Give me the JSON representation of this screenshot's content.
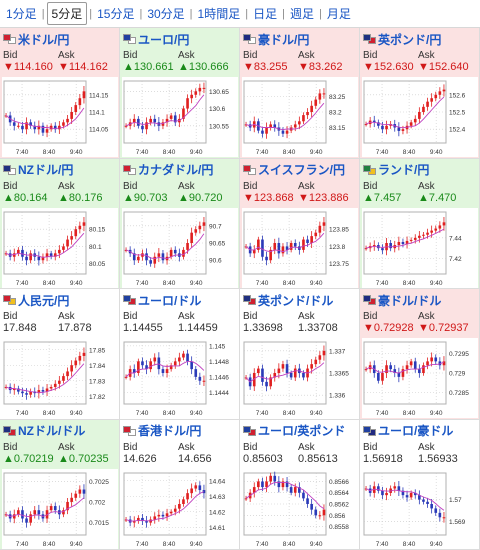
{
  "tabs": [
    "1分足",
    "5分足",
    "15分足",
    "30分足",
    "1時間足",
    "日足",
    "週足",
    "月足"
  ],
  "active_tab": 1,
  "bid_label": "Bid",
  "ask_label": "Ask",
  "up_marker": "▲",
  "down_marker": "▼",
  "colors": {
    "up_bg": "#e1f6dd",
    "down_bg": "#fbe2e2",
    "up_text": "#1a8a1a",
    "down_text": "#d01818",
    "link": "#1a56c4",
    "candle_up": "#e02020",
    "candle_down": "#2a3ab8",
    "ma": "#c040c0"
  },
  "time_labels": [
    "7:40",
    "8:40",
    "9:40"
  ],
  "pairs": [
    {
      "name": "米ドル/円",
      "dir": "down",
      "bid": "114.160",
      "ask": "114.162",
      "flags": [
        "#d02030",
        "#ffffff"
      ],
      "y_ticks": [
        "114.15",
        "114.1",
        "114.05"
      ],
      "y_ticks_n": [
        114.15,
        114.1,
        114.05
      ],
      "ylim": [
        114.01,
        114.19
      ],
      "path": [
        114.09,
        114.07,
        114.06,
        114.06,
        114.05,
        114.07,
        114.06,
        114.05,
        114.06,
        114.04,
        114.05,
        114.06,
        114.05,
        114.06,
        114.07,
        114.08,
        114.1,
        114.12,
        114.14,
        114.16
      ]
    },
    {
      "name": "ユーロ/円",
      "dir": "up",
      "bid": "130.661",
      "ask": "130.666",
      "flags": [
        "#2040a0",
        "#ffffff"
      ],
      "y_ticks": [
        "130.65",
        "130.6",
        "130.55"
      ],
      "y_ticks_n": [
        130.65,
        130.6,
        130.55
      ],
      "ylim": [
        130.5,
        130.68
      ],
      "path": [
        130.55,
        130.56,
        130.57,
        130.55,
        130.54,
        130.56,
        130.57,
        130.56,
        130.55,
        130.56,
        130.57,
        130.58,
        130.56,
        130.57,
        130.6,
        130.63,
        130.64,
        130.65,
        130.66,
        130.66
      ]
    },
    {
      "name": "豪ドル/円",
      "dir": "down",
      "bid": "83.255",
      "ask": "83.262",
      "flags": [
        "#202a80",
        "#ffffff"
      ],
      "y_ticks": [
        "83.25",
        "83.2",
        "83.15"
      ],
      "y_ticks_n": [
        83.25,
        83.2,
        83.15
      ],
      "ylim": [
        83.1,
        83.3
      ],
      "path": [
        83.16,
        83.15,
        83.17,
        83.14,
        83.13,
        83.15,
        83.16,
        83.15,
        83.14,
        83.13,
        83.14,
        83.15,
        83.16,
        83.17,
        83.19,
        83.2,
        83.22,
        83.24,
        83.26,
        83.26
      ]
    },
    {
      "name": "英ポンド/円",
      "dir": "down",
      "bid": "152.630",
      "ask": "152.640",
      "flags": [
        "#203080",
        "#d02030"
      ],
      "y_ticks": [
        "152.6",
        "152.5",
        "152.4"
      ],
      "y_ticks_n": [
        152.6,
        152.5,
        152.4
      ],
      "ylim": [
        152.32,
        152.68
      ],
      "path": [
        152.43,
        152.45,
        152.44,
        152.42,
        152.4,
        152.42,
        152.43,
        152.41,
        152.39,
        152.4,
        152.42,
        152.44,
        152.46,
        152.5,
        152.53,
        152.56,
        152.58,
        152.6,
        152.62,
        152.63
      ]
    },
    {
      "name": "NZドル/円",
      "dir": "up",
      "bid": "80.164",
      "ask": "80.176",
      "flags": [
        "#203080",
        "#ffffff"
      ],
      "y_ticks": [
        "80.15",
        "80.1",
        "80.05"
      ],
      "y_ticks_n": [
        80.15,
        80.1,
        80.05
      ],
      "ylim": [
        80.02,
        80.2
      ],
      "path": [
        80.08,
        80.07,
        80.08,
        80.09,
        80.07,
        80.06,
        80.08,
        80.07,
        80.06,
        80.07,
        80.08,
        80.07,
        80.08,
        80.09,
        80.1,
        80.12,
        80.13,
        80.15,
        80.16,
        80.17
      ]
    },
    {
      "name": "カナダドル/円",
      "dir": "up",
      "bid": "90.703",
      "ask": "90.720",
      "flags": [
        "#d02030",
        "#ffffff"
      ],
      "y_ticks": [
        "90.7",
        "90.65",
        "90.6"
      ],
      "y_ticks_n": [
        90.7,
        90.65,
        90.6
      ],
      "ylim": [
        90.56,
        90.74
      ],
      "path": [
        90.63,
        90.62,
        90.6,
        90.61,
        90.62,
        90.6,
        90.59,
        90.61,
        90.62,
        90.6,
        90.61,
        90.63,
        90.62,
        90.61,
        90.63,
        90.65,
        90.68,
        90.69,
        90.7,
        90.71
      ]
    },
    {
      "name": "スイスフラン/円",
      "dir": "down",
      "bid": "123.868",
      "ask": "123.886",
      "flags": [
        "#d02030",
        "#ffffff"
      ],
      "y_ticks": [
        "123.85",
        "123.8",
        "123.75"
      ],
      "y_ticks_n": [
        123.85,
        123.8,
        123.75
      ],
      "ylim": [
        123.72,
        123.9
      ],
      "path": [
        123.8,
        123.78,
        123.79,
        123.82,
        123.77,
        123.76,
        123.79,
        123.81,
        123.78,
        123.8,
        123.79,
        123.81,
        123.8,
        123.79,
        123.82,
        123.81,
        123.83,
        123.84,
        123.86,
        123.87
      ]
    },
    {
      "name": "ランド/円",
      "dir": "up",
      "bid": "7.457",
      "ask": "7.470",
      "flags": [
        "#208040",
        "#f0c020"
      ],
      "y_ticks": [
        "7.44",
        "7.42"
      ],
      "y_ticks_n": [
        7.44,
        7.42
      ],
      "ylim": [
        7.405,
        7.465
      ],
      "path": [
        7.43,
        7.432,
        7.433,
        7.43,
        7.428,
        7.435,
        7.43,
        7.433,
        7.436,
        7.434,
        7.437,
        7.438,
        7.44,
        7.442,
        7.443,
        7.445,
        7.447,
        7.449,
        7.452,
        7.455
      ]
    },
    {
      "name": "人民元/円",
      "dir": "flat",
      "bid": "17.848",
      "ask": "17.878",
      "flags": [
        "#d02030",
        "#f0c020"
      ],
      "y_ticks": [
        "17.85",
        "17.84",
        "17.83",
        "17.82"
      ],
      "y_ticks_n": [
        17.85,
        17.84,
        17.83,
        17.82
      ],
      "ylim": [
        17.815,
        17.855
      ],
      "path": [
        17.826,
        17.824,
        17.825,
        17.823,
        17.822,
        17.821,
        17.823,
        17.822,
        17.824,
        17.823,
        17.825,
        17.826,
        17.828,
        17.83,
        17.833,
        17.836,
        17.84,
        17.843,
        17.846,
        17.848
      ]
    },
    {
      "name": "ユーロ/ドル",
      "dir": "flat",
      "bid": "1.14455",
      "ask": "1.14459",
      "flags": [
        "#2040a0",
        "#d02030"
      ],
      "y_ticks": [
        "1.145",
        "1.1448",
        "1.1446",
        "1.1444"
      ],
      "y_ticks_n": [
        1.145,
        1.1448,
        1.1446,
        1.1444
      ],
      "ylim": [
        1.14425,
        1.14505
      ],
      "path": [
        1.1446,
        1.1447,
        1.14465,
        1.1448,
        1.14475,
        1.1447,
        1.1448,
        1.14485,
        1.1447,
        1.14465,
        1.1447,
        1.14475,
        1.1448,
        1.14485,
        1.1449,
        1.1448,
        1.1447,
        1.1446,
        1.14455,
        1.14455
      ]
    },
    {
      "name": "英ポンド/ドル",
      "dir": "flat",
      "bid": "1.33698",
      "ask": "1.33708",
      "flags": [
        "#203080",
        "#d02030"
      ],
      "y_ticks": [
        "1.337",
        "1.3365",
        "1.336"
      ],
      "y_ticks_n": [
        1.337,
        1.3365,
        1.336
      ],
      "ylim": [
        1.3358,
        1.3372
      ],
      "path": [
        1.3364,
        1.3362,
        1.3365,
        1.3366,
        1.3363,
        1.3362,
        1.3364,
        1.3365,
        1.3366,
        1.3367,
        1.3365,
        1.3364,
        1.3366,
        1.3365,
        1.3364,
        1.3366,
        1.3367,
        1.3368,
        1.3369,
        1.337
      ]
    },
    {
      "name": "豪ドル/ドル",
      "dir": "down",
      "bid": "0.72928",
      "ask": "0.72937",
      "flags": [
        "#202a80",
        "#d02030"
      ],
      "y_ticks": [
        "0.7295",
        "0.729",
        "0.7285"
      ],
      "y_ticks_n": [
        0.7295,
        0.729,
        0.7285
      ],
      "ylim": [
        0.7282,
        0.7298
      ],
      "path": [
        0.7291,
        0.7292,
        0.729,
        0.7288,
        0.729,
        0.7292,
        0.7291,
        0.729,
        0.7289,
        0.7291,
        0.7292,
        0.7293,
        0.7291,
        0.729,
        0.7292,
        0.7293,
        0.7294,
        0.7293,
        0.7292,
        0.7293
      ]
    },
    {
      "name": "NZドル/ドル",
      "dir": "up",
      "bid": "0.70219",
      "ask": "0.70235",
      "flags": [
        "#203080",
        "#d02030"
      ],
      "y_ticks": [
        "0.7025",
        "0.702",
        "0.7015"
      ],
      "y_ticks_n": [
        0.7025,
        0.702,
        0.7015
      ],
      "ylim": [
        0.7012,
        0.7027
      ],
      "path": [
        0.7017,
        0.7016,
        0.7017,
        0.7018,
        0.7016,
        0.7015,
        0.7017,
        0.7018,
        0.7017,
        0.7016,
        0.7018,
        0.7019,
        0.7018,
        0.7017,
        0.7018,
        0.702,
        0.7021,
        0.7022,
        0.7023,
        0.7022
      ]
    },
    {
      "name": "香港ドル/円",
      "dir": "flat",
      "bid": "14.626",
      "ask": "14.656",
      "flags": [
        "#d02030",
        "#ffffff"
      ],
      "y_ticks": [
        "14.64",
        "14.63",
        "14.62",
        "14.61"
      ],
      "y_ticks_n": [
        14.64,
        14.63,
        14.62,
        14.61
      ],
      "ylim": [
        14.605,
        14.645
      ],
      "path": [
        14.615,
        14.613,
        14.614,
        14.616,
        14.614,
        14.613,
        14.615,
        14.617,
        14.618,
        14.617,
        14.619,
        14.62,
        14.622,
        14.625,
        14.628,
        14.632,
        14.635,
        14.637,
        14.634,
        14.632
      ]
    },
    {
      "name": "ユーロ/英ポンド",
      "dir": "flat",
      "bid": "0.85603",
      "ask": "0.85613",
      "flags": [
        "#2040a0",
        "#d02030"
      ],
      "y_ticks": [
        "0.8566",
        "0.8564",
        "0.8562",
        "0.856",
        "0.8558"
      ],
      "y_ticks_n": [
        0.8566,
        0.8564,
        0.8562,
        0.856,
        0.8558
      ],
      "ylim": [
        0.85565,
        0.85675
      ],
      "path": [
        0.8563,
        0.8564,
        0.8565,
        0.8566,
        0.8565,
        0.8566,
        0.8567,
        0.8566,
        0.8565,
        0.8566,
        0.8565,
        0.8564,
        0.8565,
        0.8564,
        0.8563,
        0.8562,
        0.8561,
        0.856,
        0.856,
        0.8561
      ]
    },
    {
      "name": "ユーロ/豪ドル",
      "dir": "flat",
      "bid": "1.56918",
      "ask": "1.56933",
      "flags": [
        "#2040a0",
        "#202a80"
      ],
      "y_ticks": [
        "1.57",
        "1.569"
      ],
      "y_ticks_n": [
        1.57,
        1.569
      ],
      "ylim": [
        1.5684,
        1.5712
      ],
      "path": [
        1.5705,
        1.5703,
        1.5706,
        1.5704,
        1.5702,
        1.5703,
        1.5705,
        1.5706,
        1.5704,
        1.5702,
        1.5701,
        1.5703,
        1.5702,
        1.57,
        1.5699,
        1.5698,
        1.5696,
        1.5694,
        1.5692,
        1.5692
      ]
    }
  ]
}
